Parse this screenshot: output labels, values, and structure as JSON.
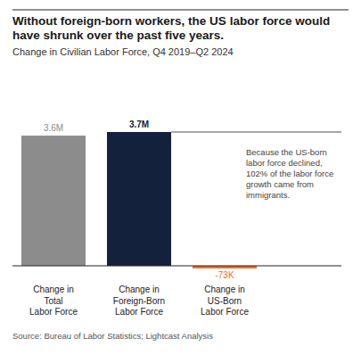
{
  "chart_data": {
    "type": "bar",
    "title": "Without foreign-born workers, the US labor force would have shrunk over the past five years.",
    "subtitle": "Change in Civilian Labor Force, Q4 2019–Q2 2024",
    "categories": [
      "Change in Total Labor Force",
      "Change in Foreign-Born Labor Force",
      "Change in US-Born Labor Force"
    ],
    "values": [
      3600000,
      3700000,
      -73000
    ],
    "value_labels": [
      "3.6M",
      "3.7M",
      "-73K"
    ],
    "colors": [
      "#8c8c8c",
      "#14213d",
      "#f26b21"
    ],
    "data_labels": true,
    "tick_labels": "x",
    "annotation": "Because the US-born labor force declined, 102% of the labor force growth came from immigrants.",
    "source": "Source: Bureau of Labor Statistics; Lightcast Analysis"
  }
}
